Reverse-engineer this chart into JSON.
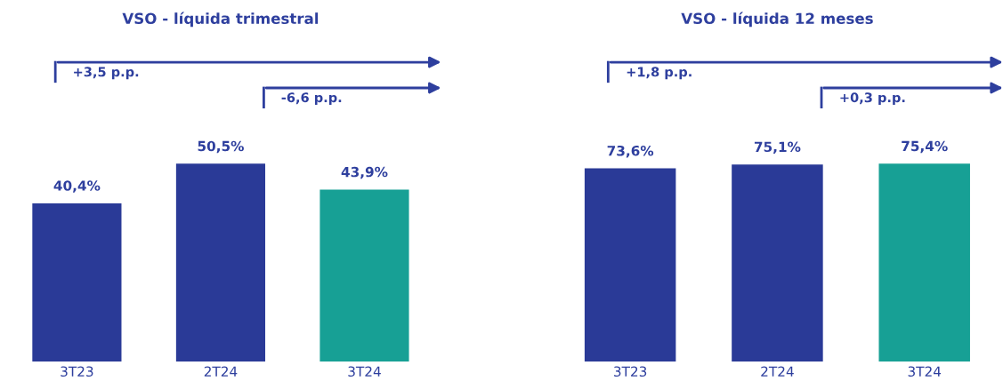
{
  "chart_data": [
    {
      "type": "bar",
      "title": "VSO - líquida trimestral",
      "categories": [
        "3T23",
        "2T24",
        "3T24"
      ],
      "values": [
        40.4,
        50.5,
        43.9
      ],
      "colors": [
        "#2a3a97",
        "#2a3a97",
        "#17a095"
      ],
      "value_labels": [
        "40,4%",
        "50,5%",
        "43,9%"
      ],
      "tick_labels": "x",
      "annotations": [
        "+3,5 p.p.",
        "-6,6 p.p."
      ]
    },
    {
      "type": "bar",
      "title": "VSO - líquida 12 meses",
      "categories": [
        "3T23",
        "2T24",
        "3T24"
      ],
      "values": [
        73.6,
        75.1,
        75.4
      ],
      "colors": [
        "#2a3a97",
        "#2a3a97",
        "#17a095"
      ],
      "value_labels": [
        "73,6%",
        "75,1%",
        "75,4%"
      ],
      "tick_labels": "x",
      "annotations": [
        "+1,8 p.p.",
        "+0,3 p.p."
      ]
    }
  ]
}
